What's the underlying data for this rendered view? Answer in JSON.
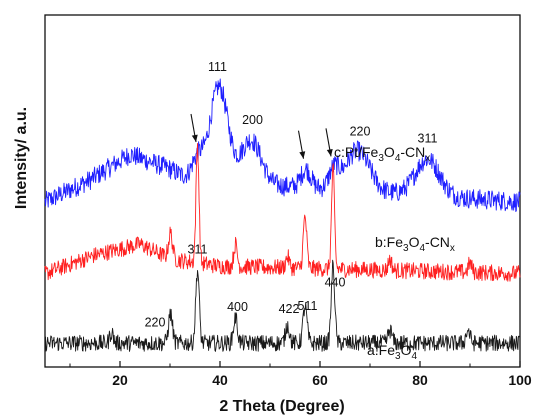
{
  "chart_data": {
    "type": "line",
    "xlabel": "2 Theta (Degree)",
    "ylabel": "Intensity/ a.u.",
    "xlim": [
      5,
      100
    ],
    "xticks": [
      20,
      40,
      60,
      80,
      100
    ],
    "yticks_shown": false,
    "grid": false,
    "legend": "none",
    "series": [
      {
        "name": "c:Pt/Fe3O4-CNx",
        "label_parts": [
          "c:Pt/Fe",
          "3",
          "O",
          "4",
          "-CN",
          "x"
        ],
        "color": "#1f1fff",
        "noise": 0.55,
        "baseline": 4.5,
        "background": [
          [
            5,
            0.0
          ],
          [
            14,
            0.6
          ],
          [
            22,
            1.3
          ],
          [
            30,
            0.9
          ],
          [
            34,
            0.6
          ],
          [
            100,
            0.0
          ]
        ],
        "peaks": [
          {
            "x": 35.5,
            "h": 0.6,
            "w": 1.2
          },
          {
            "x": 39.8,
            "h": 2.6,
            "w": 1.8
          },
          {
            "x": 46.2,
            "h": 1.2,
            "w": 2.0
          },
          {
            "x": 57.2,
            "h": 0.5,
            "w": 1.0
          },
          {
            "x": 62.8,
            "h": 0.5,
            "w": 1.0
          },
          {
            "x": 67.5,
            "h": 1.1,
            "w": 2.4
          },
          {
            "x": 81.5,
            "h": 1.0,
            "w": 2.4
          }
        ],
        "peak_labels": [
          {
            "x": 39.5,
            "text": "111"
          },
          {
            "x": 46.5,
            "text": "200"
          },
          {
            "x": 68.0,
            "text": "220"
          },
          {
            "x": 81.5,
            "text": "311"
          }
        ],
        "arrow_markers_x": [
          35.5,
          57.0,
          62.5
        ]
      },
      {
        "name": "b:Fe3O4-CNx",
        "label_parts": [
          "b:Fe",
          "3",
          "O",
          "4",
          "-CN",
          "x"
        ],
        "color": "#ff2020",
        "noise": 0.45,
        "baseline": 2.55,
        "background": [
          [
            5,
            0.0
          ],
          [
            15,
            0.5
          ],
          [
            24,
            0.8
          ],
          [
            30,
            0.4
          ],
          [
            40,
            0.2
          ],
          [
            100,
            0.0
          ]
        ],
        "peaks": [
          {
            "x": 30.1,
            "h": 0.7,
            "w": 0.4
          },
          {
            "x": 35.5,
            "h": 3.2,
            "w": 0.3
          },
          {
            "x": 43.1,
            "h": 0.6,
            "w": 0.35
          },
          {
            "x": 53.5,
            "h": 0.3,
            "w": 0.35
          },
          {
            "x": 57.0,
            "h": 1.4,
            "w": 0.35
          },
          {
            "x": 62.6,
            "h": 2.7,
            "w": 0.3
          },
          {
            "x": 74.0,
            "h": 0.3,
            "w": 0.35
          },
          {
            "x": 90.0,
            "h": 0.25,
            "w": 0.35
          }
        ],
        "peak_labels": []
      },
      {
        "name": "a:Fe3O4",
        "label_parts": [
          "a:Fe",
          "3",
          "O",
          "4"
        ],
        "color": "#1a1a1a",
        "noise": 0.45,
        "baseline": 0.65,
        "background": [
          [
            5,
            0.0
          ],
          [
            100,
            0.0
          ]
        ],
        "peaks": [
          {
            "x": 18.3,
            "h": 0.3,
            "w": 0.35
          },
          {
            "x": 30.1,
            "h": 0.8,
            "w": 0.4
          },
          {
            "x": 35.5,
            "h": 2.0,
            "w": 0.35
          },
          {
            "x": 43.1,
            "h": 0.7,
            "w": 0.4
          },
          {
            "x": 53.5,
            "h": 0.5,
            "w": 0.4
          },
          {
            "x": 57.0,
            "h": 1.0,
            "w": 0.4
          },
          {
            "x": 62.6,
            "h": 2.1,
            "w": 0.35
          },
          {
            "x": 74.0,
            "h": 0.35,
            "w": 0.4
          },
          {
            "x": 89.6,
            "h": 0.35,
            "w": 0.4
          }
        ],
        "peak_labels": [
          {
            "x": 27.0,
            "text": "220"
          },
          {
            "x": 35.5,
            "text": "311"
          },
          {
            "x": 43.5,
            "text": "400"
          },
          {
            "x": 53.8,
            "text": "422"
          },
          {
            "x": 57.5,
            "text": "511"
          },
          {
            "x": 63.0,
            "text": "440"
          }
        ]
      }
    ]
  }
}
